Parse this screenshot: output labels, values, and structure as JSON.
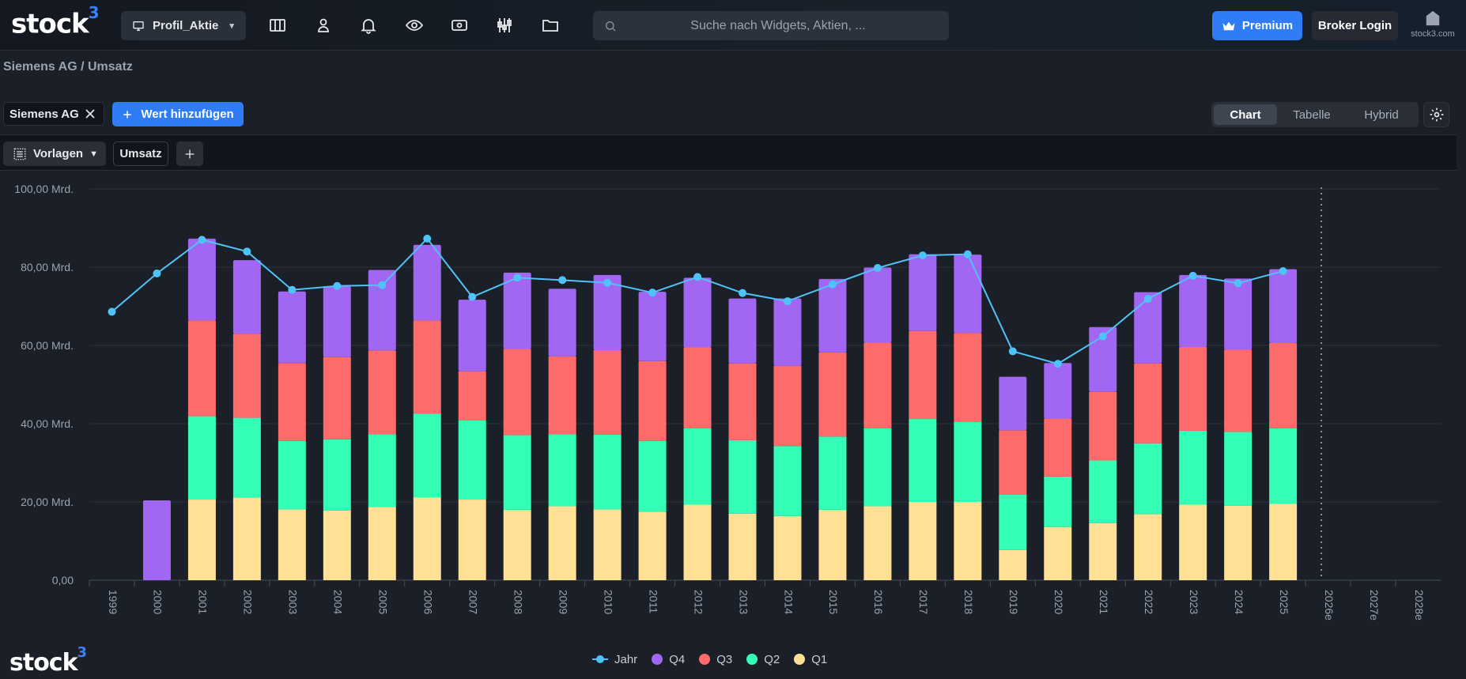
{
  "header": {
    "logo_text": "stock",
    "logo_sup": "3",
    "profile_label": "Profil_Aktie",
    "nav_icons": [
      "layout-columns-icon",
      "user-badge-icon",
      "bell-icon",
      "eye-icon",
      "money-icon",
      "chart-sliders-icon",
      "folder-icon"
    ],
    "search_placeholder": "Suche nach Widgets, Aktien, ...",
    "premium_label": "Premium",
    "broker_label": "Broker Login",
    "home_caption": "stock3.com"
  },
  "breadcrumb": "Siemens AG / Umsatz",
  "controls": {
    "stock_chip": "Siemens AG",
    "add_value_label": "Wert hinzufügen",
    "view_modes": [
      "Chart",
      "Tabelle",
      "Hybrid"
    ],
    "active_view": "Chart",
    "templates_label": "Vorlagen",
    "metric_tab": "Umsatz"
  },
  "colors": {
    "accent": "#2f7cf6",
    "jahr": "#4fc3f7",
    "q4": "#a166f2",
    "q3": "#ff6b6b",
    "q2": "#34fdb6",
    "q1": "#ffe094"
  },
  "chart_data": {
    "type": "bar",
    "stacked": true,
    "y_tick_labels": [
      "0,00",
      "20,00 Mrd.",
      "40,00 Mrd.",
      "60,00 Mrd.",
      "80,00 Mrd.",
      "100,00 Mrd."
    ],
    "ylim": [
      0,
      100
    ],
    "y_unit": "Mrd.",
    "categories": [
      "1999",
      "2000",
      "2001",
      "2002",
      "2003",
      "2004",
      "2005",
      "2006",
      "2007",
      "2008",
      "2009",
      "2010",
      "2011",
      "2012",
      "2013",
      "2014",
      "2015",
      "2016",
      "2017",
      "2018",
      "2019",
      "2020",
      "2021",
      "2022",
      "2023",
      "2024",
      "2025",
      "2026e",
      "2027e",
      "2028e"
    ],
    "forecast_divider_after": "2025",
    "series": [
      {
        "name": "Q1",
        "values": [
          null,
          null,
          20.6,
          21.1,
          18.1,
          17.8,
          18.7,
          21.2,
          20.6,
          18.0,
          18.9,
          18.1,
          17.5,
          19.3,
          17.0,
          16.4,
          18.0,
          18.9,
          20.0,
          20.0,
          7.7,
          13.6,
          14.6,
          16.9,
          19.3,
          19.0,
          19.5,
          null,
          null,
          null
        ]
      },
      {
        "name": "Q2",
        "values": [
          null,
          null,
          21.3,
          20.4,
          17.5,
          18.2,
          18.6,
          21.4,
          20.2,
          19.1,
          18.4,
          19.1,
          18.1,
          19.5,
          18.8,
          17.9,
          18.7,
          19.9,
          21.2,
          20.4,
          14.2,
          12.9,
          16.0,
          18.1,
          18.9,
          18.9,
          19.3,
          null,
          null,
          null
        ]
      },
      {
        "name": "Q3",
        "values": [
          null,
          null,
          24.5,
          21.5,
          19.9,
          21.0,
          21.4,
          23.8,
          12.6,
          22.0,
          19.9,
          21.6,
          20.4,
          20.7,
          19.6,
          20.5,
          21.5,
          21.9,
          22.5,
          22.8,
          16.4,
          14.8,
          17.5,
          20.4,
          21.4,
          21.0,
          21.8,
          null,
          null,
          null
        ]
      },
      {
        "name": "Q4",
        "values": [
          null,
          20.4,
          20.9,
          18.8,
          18.3,
          18.1,
          20.6,
          19.3,
          18.3,
          19.5,
          17.3,
          19.2,
          17.7,
          17.8,
          16.6,
          17.2,
          18.8,
          19.2,
          19.6,
          20.0,
          13.7,
          14.2,
          16.6,
          18.2,
          18.4,
          18.2,
          18.9,
          null,
          null,
          null
        ]
      },
      {
        "name": "Jahr",
        "type": "line",
        "values": [
          68.6,
          78.4,
          87.0,
          84.0,
          74.2,
          75.2,
          75.4,
          87.3,
          72.4,
          77.3,
          76.7,
          76.0,
          73.5,
          77.5,
          73.4,
          71.3,
          75.6,
          79.8,
          83.0,
          83.3,
          58.5,
          55.3,
          62.3,
          71.9,
          77.8,
          75.9,
          79.0,
          null,
          null,
          null
        ]
      }
    ],
    "legend": [
      "Jahr",
      "Q4",
      "Q3",
      "Q2",
      "Q1"
    ],
    "legend_position": "bottom-center",
    "grid": true
  },
  "footer": {
    "logo_text": "stock",
    "logo_sup": "3"
  }
}
